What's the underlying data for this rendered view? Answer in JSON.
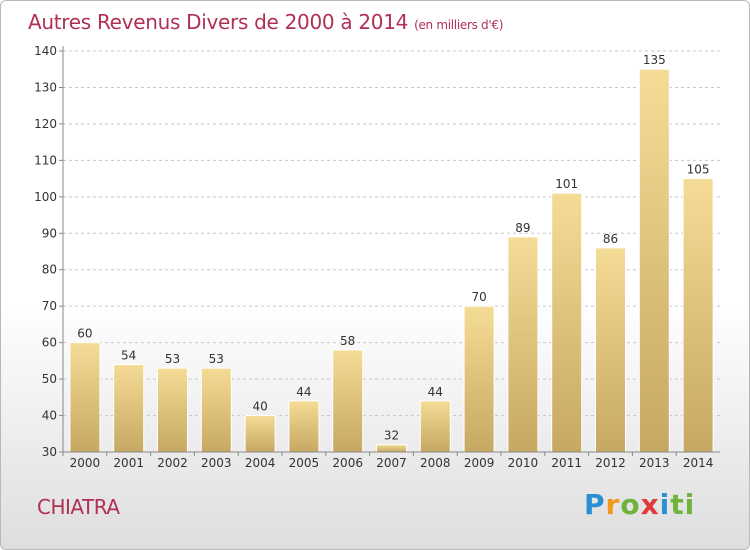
{
  "title": "Autres Revenus Divers de 2000 à 2014",
  "subtitle": "(en milliers d'€)",
  "place": "CHIATRA",
  "logo": [
    "P",
    "r",
    "o",
    "x",
    "i",
    "ti"
  ],
  "colors": {
    "bar_top": "#f5dc96",
    "bar_bottom": "#c6a862",
    "title": "#b03054",
    "grid": "#c8c8c8"
  },
  "chart_data": {
    "type": "bar",
    "categories": [
      "2000",
      "2001",
      "2002",
      "2003",
      "2004",
      "2005",
      "2006",
      "2007",
      "2008",
      "2009",
      "2010",
      "2011",
      "2012",
      "2013",
      "2014"
    ],
    "values": [
      60,
      54,
      53,
      53,
      40,
      44,
      58,
      32,
      44,
      70,
      89,
      101,
      86,
      135,
      105
    ],
    "ylim": [
      30,
      140
    ],
    "yticks": [
      30,
      40,
      50,
      60,
      70,
      80,
      90,
      100,
      110,
      120,
      130,
      140
    ],
    "grid": true
  }
}
